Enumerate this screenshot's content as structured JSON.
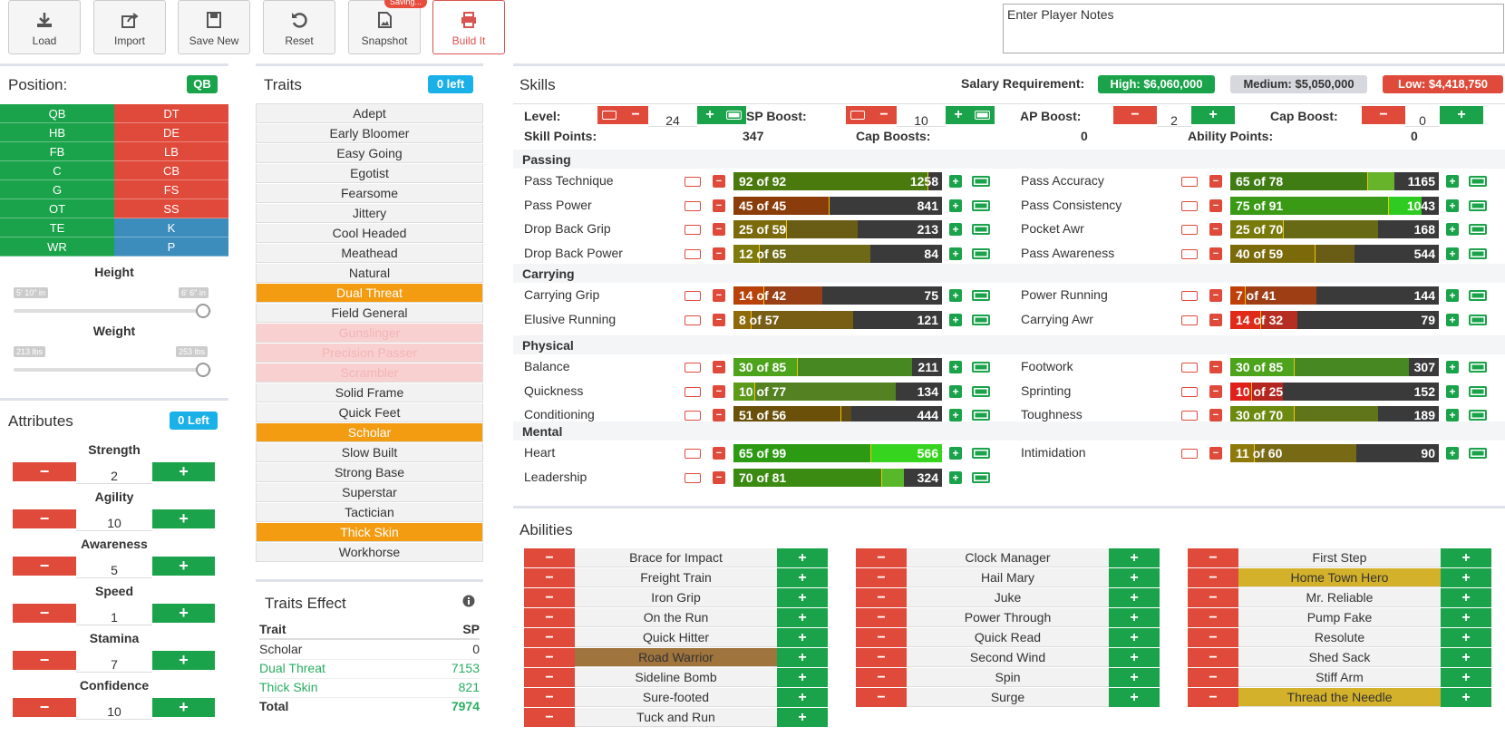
{
  "toolbar": {
    "load": "Load",
    "import": "Import",
    "save_new": "Save New",
    "reset": "Reset",
    "snapshot": "Snapshot",
    "saving_badge": "Saving...",
    "build_it": "Build It"
  },
  "notes": {
    "placeholder": "Enter Player Notes"
  },
  "position": {
    "title": "Position:",
    "selected": "QB",
    "left": [
      "QB",
      "HB",
      "FB",
      "C",
      "G",
      "OT",
      "TE",
      "WR"
    ],
    "right_red": [
      "DT",
      "DE",
      "LB",
      "CB",
      "FS",
      "SS"
    ],
    "right_blue": [
      "K",
      "P"
    ]
  },
  "height": {
    "label": "Height",
    "min": "5' 10\" in",
    "max": "6' 6\" in",
    "value_fraction": 1.0
  },
  "weight": {
    "label": "Weight",
    "min": "213 lbs",
    "max": "253 lbs",
    "value_fraction": 1.0
  },
  "attributes": {
    "title": "Attributes",
    "left_badge": "0 Left",
    "items": [
      {
        "name": "Strength",
        "value": "2"
      },
      {
        "name": "Agility",
        "value": "10"
      },
      {
        "name": "Awareness",
        "value": "5"
      },
      {
        "name": "Speed",
        "value": "1"
      },
      {
        "name": "Stamina",
        "value": "7"
      },
      {
        "name": "Confidence",
        "value": "10"
      }
    ]
  },
  "traits": {
    "title": "Traits",
    "left_badge": "0 left",
    "items": [
      {
        "name": "Adept",
        "state": "normal"
      },
      {
        "name": "Early Bloomer",
        "state": "normal"
      },
      {
        "name": "Easy Going",
        "state": "normal"
      },
      {
        "name": "Egotist",
        "state": "normal"
      },
      {
        "name": "Fearsome",
        "state": "normal"
      },
      {
        "name": "Jittery",
        "state": "normal"
      },
      {
        "name": "Cool Headed",
        "state": "normal"
      },
      {
        "name": "Meathead",
        "state": "normal"
      },
      {
        "name": "Natural",
        "state": "normal"
      },
      {
        "name": "Dual Threat",
        "state": "selected"
      },
      {
        "name": "Field General",
        "state": "normal"
      },
      {
        "name": "Gunslinger",
        "state": "disabled"
      },
      {
        "name": "Precision Passer",
        "state": "disabled"
      },
      {
        "name": "Scrambler",
        "state": "disabled"
      },
      {
        "name": "Solid Frame",
        "state": "normal"
      },
      {
        "name": "Quick Feet",
        "state": "normal"
      },
      {
        "name": "Scholar",
        "state": "selected"
      },
      {
        "name": "Slow Built",
        "state": "normal"
      },
      {
        "name": "Strong Base",
        "state": "normal"
      },
      {
        "name": "Superstar",
        "state": "normal"
      },
      {
        "name": "Tactician",
        "state": "normal"
      },
      {
        "name": "Thick Skin",
        "state": "selected"
      },
      {
        "name": "Workhorse",
        "state": "normal"
      }
    ]
  },
  "traits_effect": {
    "title": "Traits Effect",
    "col_trait": "Trait",
    "col_sp": "SP",
    "rows": [
      {
        "trait": "Scholar",
        "sp": "0",
        "color": "#333333"
      },
      {
        "trait": "Dual Threat",
        "sp": "7153",
        "color": "#27ae60"
      },
      {
        "trait": "Thick Skin",
        "sp": "821",
        "color": "#27ae60"
      }
    ],
    "total_label": "Total",
    "total_sp": "7974"
  },
  "skills": {
    "title": "Skills",
    "salary_label": "Salary Requirement:",
    "salary_high": "High: $6,060,000",
    "salary_medium": "Medium: $5,050,000",
    "salary_low": "Low: $4,418,750",
    "level_label": "Level:",
    "level_value": "24",
    "sp_boost_label": "SP Boost:",
    "sp_boost_value": "10",
    "ap_boost_label": "AP Boost:",
    "ap_boost_value": "2",
    "cap_boost_label": "Cap Boost:",
    "cap_boost_value": "0",
    "skill_points_label": "Skill Points:",
    "skill_points_value": "347",
    "cap_boosts_label": "Cap Boosts:",
    "cap_boosts_value": "0",
    "ability_points_label": "Ability Points:",
    "ability_points_value": "0",
    "categories": [
      {
        "name": "Passing",
        "rows": [
          [
            {
              "name": "Pass Technique",
              "cur": 92,
              "max": 92,
              "sp": "1258",
              "text": "92 of 92",
              "hue": "#4a7a0e",
              "extra": "#8fa30a"
            },
            {
              "name": "Pass Accuracy",
              "cur": 65,
              "max": 78,
              "sp": "1165",
              "text": "65 of 78",
              "hue": "#3f7d14",
              "extra": "#67b32a"
            }
          ],
          [
            {
              "name": "Pass Power",
              "cur": 45,
              "max": 45,
              "sp": "841",
              "text": "45 of 45",
              "hue": "#8a3d0a",
              "extra": ""
            },
            {
              "name": "Pass Consistency",
              "cur": 75,
              "max": 91,
              "sp": "1043",
              "text": "75 of 91",
              "hue": "#3a9a16",
              "extra": "#2ecc20"
            }
          ],
          [
            {
              "name": "Drop Back Grip",
              "cur": 25,
              "max": 59,
              "sp": "213",
              "text": "25 of 59",
              "hue": "#7a6a0a",
              "extra": ""
            },
            {
              "name": "Pocket Awr",
              "cur": 25,
              "max": 70,
              "sp": "168",
              "text": "25 of 70",
              "hue": "#787a0a",
              "extra": ""
            }
          ],
          [
            {
              "name": "Drop Back Power",
              "cur": 12,
              "max": 65,
              "sp": "84",
              "text": "12 of 65",
              "hue": "#7f7a0c",
              "extra": ""
            },
            {
              "name": "Pass Awareness",
              "cur": 40,
              "max": 59,
              "sp": "544",
              "text": "40 of 59",
              "hue": "#7a6a0a",
              "extra": ""
            }
          ]
        ]
      },
      {
        "name": "Carrying",
        "rows": [
          [
            {
              "name": "Carrying Grip",
              "cur": 14,
              "max": 42,
              "sp": "75",
              "text": "14 of 42",
              "hue": "#b8420a",
              "extra": ""
            },
            {
              "name": "Power Running",
              "cur": 7,
              "max": 41,
              "sp": "144",
              "text": "7 of 41",
              "hue": "#c0400a",
              "extra": ""
            }
          ],
          [
            {
              "name": "Elusive Running",
              "cur": 8,
              "max": 57,
              "sp": "121",
              "text": "8 of 57",
              "hue": "#8e6a0a",
              "extra": ""
            },
            {
              "name": "Carrying Awr",
              "cur": 14,
              "max": 32,
              "sp": "79",
              "text": "14 of 32",
              "hue": "#e02a1a",
              "extra": ""
            }
          ]
        ]
      },
      {
        "name": "Physical",
        "rows": [
          [
            {
              "name": "Balance",
              "cur": 30,
              "max": 85,
              "sp": "211",
              "text": "30 of 85",
              "hue": "#4da31c",
              "extra": ""
            },
            {
              "name": "Footwork",
              "cur": 30,
              "max": 85,
              "sp": "307",
              "text": "30 of 85",
              "hue": "#4da31c",
              "extra": ""
            }
          ],
          [
            {
              "name": "Quickness",
              "cur": 10,
              "max": 77,
              "sp": "134",
              "text": "10 of 77",
              "hue": "#5e9a1a",
              "extra": ""
            },
            {
              "name": "Sprinting",
              "cur": 10,
              "max": 25,
              "sp": "152",
              "text": "10 of 25",
              "hue": "#e0201a",
              "extra": ""
            }
          ],
          [
            {
              "name": "Conditioning",
              "cur": 51,
              "max": 56,
              "sp": "444",
              "text": "51 of 56",
              "hue": "#6a5009",
              "extra": ""
            },
            {
              "name": "Toughness",
              "cur": 30,
              "max": 70,
              "sp": "189",
              "text": "30 of 70",
              "hue": "#6d8a10",
              "extra": ""
            }
          ]
        ]
      },
      {
        "name": "Mental",
        "rows": [
          [
            {
              "name": "Heart",
              "cur": 65,
              "max": 99,
              "sp": "566",
              "text": "65 of 99",
              "hue": "#2d9a14",
              "extra": "#36d41e"
            },
            {
              "name": "Intimidation",
              "cur": 11,
              "max": 60,
              "sp": "90",
              "text": "11 of 60",
              "hue": "#8e7a0a",
              "extra": ""
            }
          ],
          [
            {
              "name": "Leadership",
              "cur": 70,
              "max": 81,
              "sp": "324",
              "text": "70 of 81",
              "hue": "#3b8a12",
              "extra": "#58b82a"
            },
            null
          ]
        ]
      }
    ]
  },
  "abilities": {
    "title": "Abilities",
    "columns": [
      [
        {
          "name": "Brace for Impact",
          "style": ""
        },
        {
          "name": "Freight Train",
          "style": ""
        },
        {
          "name": "Iron Grip",
          "style": ""
        },
        {
          "name": "On the Run",
          "style": ""
        },
        {
          "name": "Quick Hitter",
          "style": ""
        },
        {
          "name": "Road Warrior",
          "style": "road"
        },
        {
          "name": "Sideline Bomb",
          "style": ""
        },
        {
          "name": "Sure-footed",
          "style": ""
        },
        {
          "name": "Tuck and Run",
          "style": ""
        }
      ],
      [
        {
          "name": "Clock Manager",
          "style": ""
        },
        {
          "name": "Hail Mary",
          "style": ""
        },
        {
          "name": "Juke",
          "style": ""
        },
        {
          "name": "Power Through",
          "style": ""
        },
        {
          "name": "Quick Read",
          "style": ""
        },
        {
          "name": "Second Wind",
          "style": ""
        },
        {
          "name": "Spin",
          "style": ""
        },
        {
          "name": "Surge",
          "style": ""
        }
      ],
      [
        {
          "name": "First Step",
          "style": ""
        },
        {
          "name": "Home Town Hero",
          "style": "gold"
        },
        {
          "name": "Mr. Reliable",
          "style": ""
        },
        {
          "name": "Pump Fake",
          "style": ""
        },
        {
          "name": "Resolute",
          "style": ""
        },
        {
          "name": "Shed Sack",
          "style": ""
        },
        {
          "name": "Stiff Arm",
          "style": ""
        },
        {
          "name": "Thread the Needle",
          "style": "gold"
        }
      ]
    ]
  },
  "colors": {
    "green": "#1aa34a",
    "red": "#e04a3b",
    "blue": "#3c8dbc",
    "orange": "#f39c12",
    "cyan": "#1ab0e8"
  }
}
